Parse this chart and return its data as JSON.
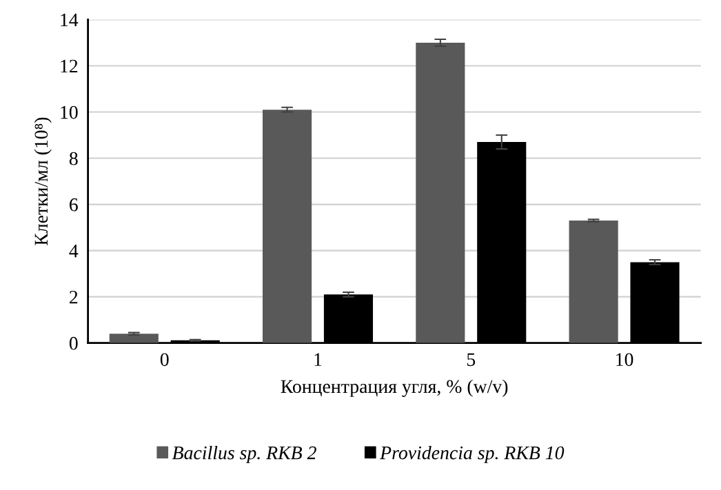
{
  "chart_data": {
    "type": "bar",
    "xlabel": "Концентрация угля, % (w/v)",
    "ylabel": "Клетки/мл (10⁸)",
    "categories": [
      "0",
      "1",
      "5",
      "10"
    ],
    "series": [
      {
        "name": "Bacillus sp. RKB 2",
        "color": "#595959",
        "values": [
          0.4,
          10.1,
          13.0,
          5.3
        ],
        "errors": [
          0.05,
          0.1,
          0.15,
          0.05
        ]
      },
      {
        "name": "Providencia sp. RKB 10",
        "color": "#000000",
        "values": [
          0.12,
          2.1,
          8.7,
          3.5
        ],
        "errors": [
          0.03,
          0.1,
          0.3,
          0.1
        ]
      }
    ],
    "ylim": [
      0,
      14
    ],
    "yticks": [
      0,
      2,
      4,
      6,
      8,
      10,
      12,
      14
    ],
    "grid": "y",
    "legend": "bottom"
  }
}
